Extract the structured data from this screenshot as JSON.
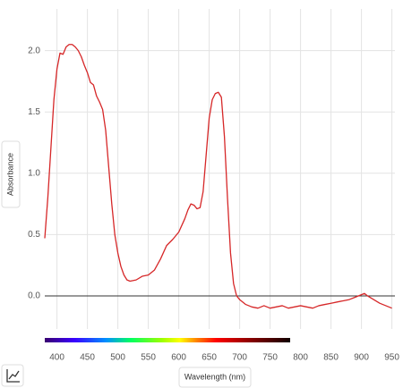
{
  "chart_data": {
    "type": "line",
    "xlabel": "Wavelength (nm)",
    "ylabel": "Absorbance",
    "color": "#d62728",
    "x": [
      380,
      385,
      390,
      395,
      400,
      405,
      410,
      415,
      420,
      425,
      430,
      435,
      440,
      445,
      450,
      455,
      460,
      465,
      470,
      475,
      480,
      485,
      490,
      495,
      500,
      505,
      510,
      515,
      520,
      530,
      540,
      550,
      560,
      570,
      580,
      590,
      600,
      610,
      615,
      620,
      625,
      630,
      635,
      640,
      645,
      650,
      655,
      660,
      665,
      670,
      675,
      680,
      685,
      690,
      695,
      700,
      710,
      720,
      730,
      740,
      750,
      760,
      770,
      780,
      790,
      800,
      810,
      820,
      830,
      840,
      850,
      860,
      870,
      880,
      890,
      900,
      905,
      910,
      920,
      930,
      940,
      950
    ],
    "values": [
      0.47,
      0.8,
      1.2,
      1.6,
      1.85,
      1.98,
      1.97,
      2.03,
      2.05,
      2.05,
      2.03,
      2.0,
      1.95,
      1.88,
      1.82,
      1.74,
      1.72,
      1.63,
      1.58,
      1.52,
      1.35,
      1.05,
      0.75,
      0.5,
      0.35,
      0.24,
      0.17,
      0.13,
      0.12,
      0.13,
      0.16,
      0.17,
      0.21,
      0.3,
      0.41,
      0.46,
      0.52,
      0.63,
      0.7,
      0.75,
      0.74,
      0.71,
      0.72,
      0.85,
      1.15,
      1.45,
      1.6,
      1.65,
      1.66,
      1.62,
      1.3,
      0.8,
      0.35,
      0.1,
      0.0,
      -0.03,
      -0.07,
      -0.09,
      -0.1,
      -0.08,
      -0.1,
      -0.09,
      -0.08,
      -0.1,
      -0.09,
      -0.08,
      -0.09,
      -0.1,
      -0.08,
      -0.07,
      -0.06,
      -0.05,
      -0.04,
      -0.03,
      -0.01,
      0.01,
      0.02,
      0.0,
      -0.03,
      -0.06,
      -0.08,
      -0.1
    ],
    "xlim": [
      380,
      955
    ],
    "xticks": [
      400,
      450,
      500,
      550,
      600,
      650,
      700,
      750,
      800,
      850,
      900,
      950
    ],
    "ylim": [
      -0.27,
      2.34
    ],
    "yticks": [
      {
        "value": 0,
        "label": "0.0"
      },
      {
        "value": 0.5,
        "label": "0.5"
      },
      {
        "value": 1,
        "label": "1.0"
      },
      {
        "value": 1.5,
        "label": "1.5"
      },
      {
        "value": 2,
        "label": "2.0"
      }
    ],
    "grid": true
  }
}
